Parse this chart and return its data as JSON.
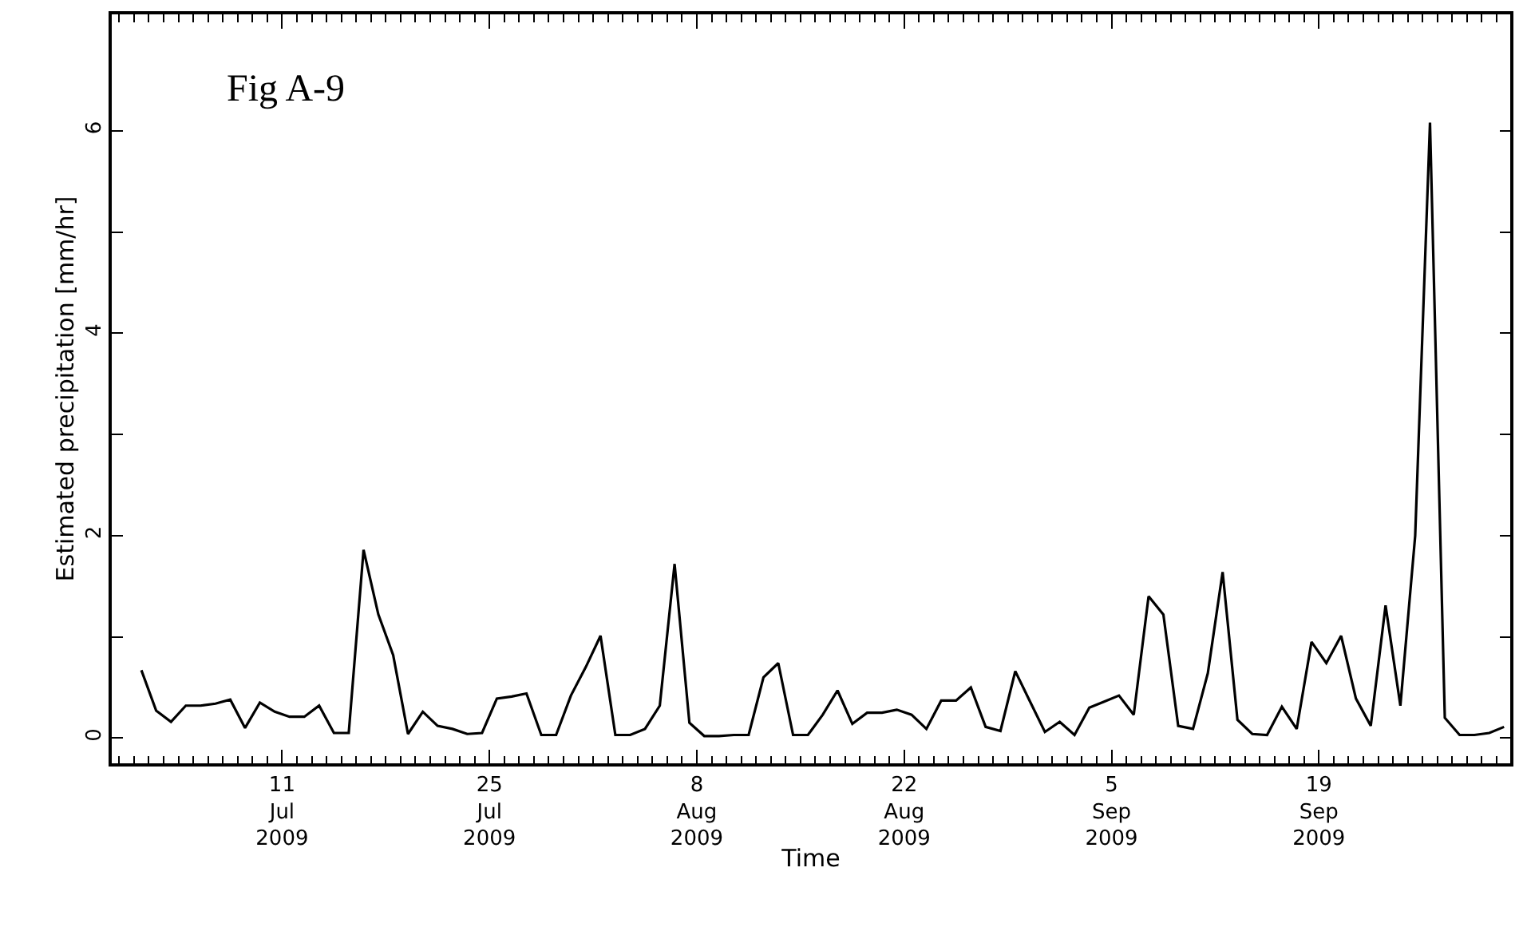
{
  "chart_data": {
    "type": "line",
    "title": "Fig A-9",
    "xlabel": "Time",
    "ylabel": "Estimated precipitation [mm/hr]",
    "x": [
      "2009-07-01T12:00",
      "2009-07-02T12:00",
      "2009-07-03T12:00",
      "2009-07-04T12:00",
      "2009-07-05T12:00",
      "2009-07-06T12:00",
      "2009-07-07T12:00",
      "2009-07-08T12:00",
      "2009-07-09T12:00",
      "2009-07-10T12:00",
      "2009-07-11T12:00",
      "2009-07-12T12:00",
      "2009-07-13T12:00",
      "2009-07-14T12:00",
      "2009-07-15T12:00",
      "2009-07-16T12:00",
      "2009-07-17T12:00",
      "2009-07-18T12:00",
      "2009-07-19T12:00",
      "2009-07-20T12:00",
      "2009-07-21T12:00",
      "2009-07-22T12:00",
      "2009-07-23T12:00",
      "2009-07-24T12:00",
      "2009-07-25T12:00",
      "2009-07-26T12:00",
      "2009-07-27T12:00",
      "2009-07-28T12:00",
      "2009-07-29T12:00",
      "2009-07-30T12:00",
      "2009-07-31T12:00",
      "2009-08-01T12:00",
      "2009-08-02T12:00",
      "2009-08-03T12:00",
      "2009-08-04T12:00",
      "2009-08-05T12:00",
      "2009-08-06T12:00",
      "2009-08-07T12:00",
      "2009-08-08T12:00",
      "2009-08-09T12:00",
      "2009-08-10T12:00",
      "2009-08-11T12:00",
      "2009-08-12T12:00",
      "2009-08-13T12:00",
      "2009-08-14T12:00",
      "2009-08-15T12:00",
      "2009-08-16T12:00",
      "2009-08-17T12:00",
      "2009-08-18T12:00",
      "2009-08-19T12:00",
      "2009-08-20T12:00",
      "2009-08-21T12:00",
      "2009-08-22T12:00",
      "2009-08-23T12:00",
      "2009-08-24T12:00",
      "2009-08-25T12:00",
      "2009-08-26T12:00",
      "2009-08-27T12:00",
      "2009-08-28T12:00",
      "2009-08-29T12:00",
      "2009-08-30T12:00",
      "2009-08-31T12:00",
      "2009-09-01T12:00",
      "2009-09-02T12:00",
      "2009-09-03T12:00",
      "2009-09-04T12:00",
      "2009-09-05T12:00",
      "2009-09-06T12:00",
      "2009-09-07T12:00",
      "2009-09-08T12:00",
      "2009-09-09T12:00",
      "2009-09-10T12:00",
      "2009-09-11T12:00",
      "2009-09-12T12:00",
      "2009-09-13T12:00",
      "2009-09-14T12:00",
      "2009-09-15T12:00",
      "2009-09-16T12:00",
      "2009-09-17T12:00",
      "2009-09-18T12:00",
      "2009-09-19T12:00",
      "2009-09-20T12:00",
      "2009-09-21T12:00",
      "2009-09-22T12:00",
      "2009-09-23T12:00",
      "2009-09-24T12:00",
      "2009-09-25T12:00",
      "2009-09-26T12:00",
      "2009-09-27T12:00",
      "2009-09-28T12:00",
      "2009-09-29T12:00",
      "2009-09-30T12:00",
      "2009-10-01T12:00"
    ],
    "series": [
      {
        "color": "#000000",
        "values": [
          0.67,
          0.27,
          0.16,
          0.32,
          0.32,
          0.34,
          0.38,
          0.1,
          0.35,
          0.26,
          0.21,
          0.21,
          0.32,
          0.05,
          0.05,
          1.86,
          1.22,
          0.82,
          0.04,
          0.26,
          0.12,
          0.09,
          0.04,
          0.05,
          0.39,
          0.41,
          0.44,
          0.03,
          0.03,
          0.42,
          0.7,
          1.01,
          0.03,
          0.03,
          0.09,
          0.32,
          1.72,
          0.15,
          0.02,
          0.02,
          0.03,
          0.03,
          0.6,
          0.74,
          0.03,
          0.03,
          0.23,
          0.47,
          0.14,
          0.25,
          0.25,
          0.28,
          0.23,
          0.09,
          0.37,
          0.37,
          0.5,
          0.11,
          0.07,
          0.66,
          0.36,
          0.06,
          0.16,
          0.03,
          0.3,
          0.36,
          0.42,
          0.23,
          1.4,
          1.22,
          0.12,
          0.09,
          0.64,
          1.64,
          0.18,
          0.04,
          0.03,
          0.31,
          0.09,
          0.95,
          0.74,
          1.01,
          0.39,
          0.12,
          1.31,
          0.32,
          2.0,
          6.08,
          0.2,
          0.03,
          0.03,
          0.05,
          0.11
        ]
      }
    ],
    "xlim": [
      "2009-06-29T12:00",
      "2009-10-01T22:00"
    ],
    "xticks": [
      {
        "value": "2009-07-11",
        "label": "11\nJul\n2009"
      },
      {
        "value": "2009-07-25",
        "label": "25\nJul\n2009"
      },
      {
        "value": "2009-08-08",
        "label": "8\nAug\n2009"
      },
      {
        "value": "2009-08-22",
        "label": "22\nAug\n2009"
      },
      {
        "value": "2009-09-05",
        "label": "5\nSep\n2009"
      },
      {
        "value": "2009-09-19",
        "label": "19\nSep\n2009"
      },
      {
        "value": "2009-06-30",
        "label": null
      },
      {
        "value": "2009-07-01",
        "label": null
      },
      {
        "value": "2009-07-02",
        "label": null
      },
      {
        "value": "2009-07-03",
        "label": null
      },
      {
        "value": "2009-07-04",
        "label": null
      },
      {
        "value": "2009-07-05",
        "label": null
      },
      {
        "value": "2009-07-06",
        "label": null
      },
      {
        "value": "2009-07-07",
        "label": null
      },
      {
        "value": "2009-07-08",
        "label": null
      },
      {
        "value": "2009-07-09",
        "label": null
      },
      {
        "value": "2009-07-10",
        "label": null
      },
      {
        "value": "2009-07-12",
        "label": null
      },
      {
        "value": "2009-07-13",
        "label": null
      },
      {
        "value": "2009-07-14",
        "label": null
      },
      {
        "value": "2009-07-15",
        "label": null
      },
      {
        "value": "2009-07-16",
        "label": null
      },
      {
        "value": "2009-07-17",
        "label": null
      },
      {
        "value": "2009-07-18",
        "label": null
      },
      {
        "value": "2009-07-19",
        "label": null
      },
      {
        "value": "2009-07-20",
        "label": null
      },
      {
        "value": "2009-07-21",
        "label": null
      },
      {
        "value": "2009-07-22",
        "label": null
      },
      {
        "value": "2009-07-23",
        "label": null
      },
      {
        "value": "2009-07-24",
        "label": null
      },
      {
        "value": "2009-07-26",
        "label": null
      },
      {
        "value": "2009-07-27",
        "label": null
      },
      {
        "value": "2009-07-28",
        "label": null
      },
      {
        "value": "2009-07-29",
        "label": null
      },
      {
        "value": "2009-07-30",
        "label": null
      },
      {
        "value": "2009-07-31",
        "label": null
      },
      {
        "value": "2009-08-01",
        "label": null
      },
      {
        "value": "2009-08-02",
        "label": null
      },
      {
        "value": "2009-08-03",
        "label": null
      },
      {
        "value": "2009-08-04",
        "label": null
      },
      {
        "value": "2009-08-05",
        "label": null
      },
      {
        "value": "2009-08-06",
        "label": null
      },
      {
        "value": "2009-08-07",
        "label": null
      },
      {
        "value": "2009-08-09",
        "label": null
      },
      {
        "value": "2009-08-10",
        "label": null
      },
      {
        "value": "2009-08-11",
        "label": null
      },
      {
        "value": "2009-08-12",
        "label": null
      },
      {
        "value": "2009-08-13",
        "label": null
      },
      {
        "value": "2009-08-14",
        "label": null
      },
      {
        "value": "2009-08-15",
        "label": null
      },
      {
        "value": "2009-08-16",
        "label": null
      },
      {
        "value": "2009-08-17",
        "label": null
      },
      {
        "value": "2009-08-18",
        "label": null
      },
      {
        "value": "2009-08-19",
        "label": null
      },
      {
        "value": "2009-08-20",
        "label": null
      },
      {
        "value": "2009-08-21",
        "label": null
      },
      {
        "value": "2009-08-23",
        "label": null
      },
      {
        "value": "2009-08-24",
        "label": null
      },
      {
        "value": "2009-08-25",
        "label": null
      },
      {
        "value": "2009-08-26",
        "label": null
      },
      {
        "value": "2009-08-27",
        "label": null
      },
      {
        "value": "2009-08-28",
        "label": null
      },
      {
        "value": "2009-08-29",
        "label": null
      },
      {
        "value": "2009-08-30",
        "label": null
      },
      {
        "value": "2009-08-31",
        "label": null
      },
      {
        "value": "2009-09-01",
        "label": null
      },
      {
        "value": "2009-09-02",
        "label": null
      },
      {
        "value": "2009-09-03",
        "label": null
      },
      {
        "value": "2009-09-04",
        "label": null
      },
      {
        "value": "2009-09-06",
        "label": null
      },
      {
        "value": "2009-09-07",
        "label": null
      },
      {
        "value": "2009-09-08",
        "label": null
      },
      {
        "value": "2009-09-09",
        "label": null
      },
      {
        "value": "2009-09-10",
        "label": null
      },
      {
        "value": "2009-09-11",
        "label": null
      },
      {
        "value": "2009-09-12",
        "label": null
      },
      {
        "value": "2009-09-13",
        "label": null
      },
      {
        "value": "2009-09-14",
        "label": null
      },
      {
        "value": "2009-09-15",
        "label": null
      },
      {
        "value": "2009-09-16",
        "label": null
      },
      {
        "value": "2009-09-17",
        "label": null
      },
      {
        "value": "2009-09-18",
        "label": null
      },
      {
        "value": "2009-09-20",
        "label": null
      },
      {
        "value": "2009-09-21",
        "label": null
      },
      {
        "value": "2009-09-22",
        "label": null
      },
      {
        "value": "2009-09-23",
        "label": null
      },
      {
        "value": "2009-09-24",
        "label": null
      },
      {
        "value": "2009-09-25",
        "label": null
      },
      {
        "value": "2009-09-26",
        "label": null
      },
      {
        "value": "2009-09-27",
        "label": null
      },
      {
        "value": "2009-09-28",
        "label": null
      },
      {
        "value": "2009-09-29",
        "label": null
      },
      {
        "value": "2009-09-30",
        "label": null
      },
      {
        "value": "2009-10-01",
        "label": null
      }
    ],
    "ylim": [
      -0.25,
      7.15
    ],
    "yticks": [
      0,
      2,
      4,
      6,
      {
        "value": 1,
        "label": null
      },
      {
        "value": 3,
        "label": null
      },
      {
        "value": 5,
        "label": null
      }
    ],
    "grid": false,
    "marker": "none",
    "line_style": "solid"
  }
}
